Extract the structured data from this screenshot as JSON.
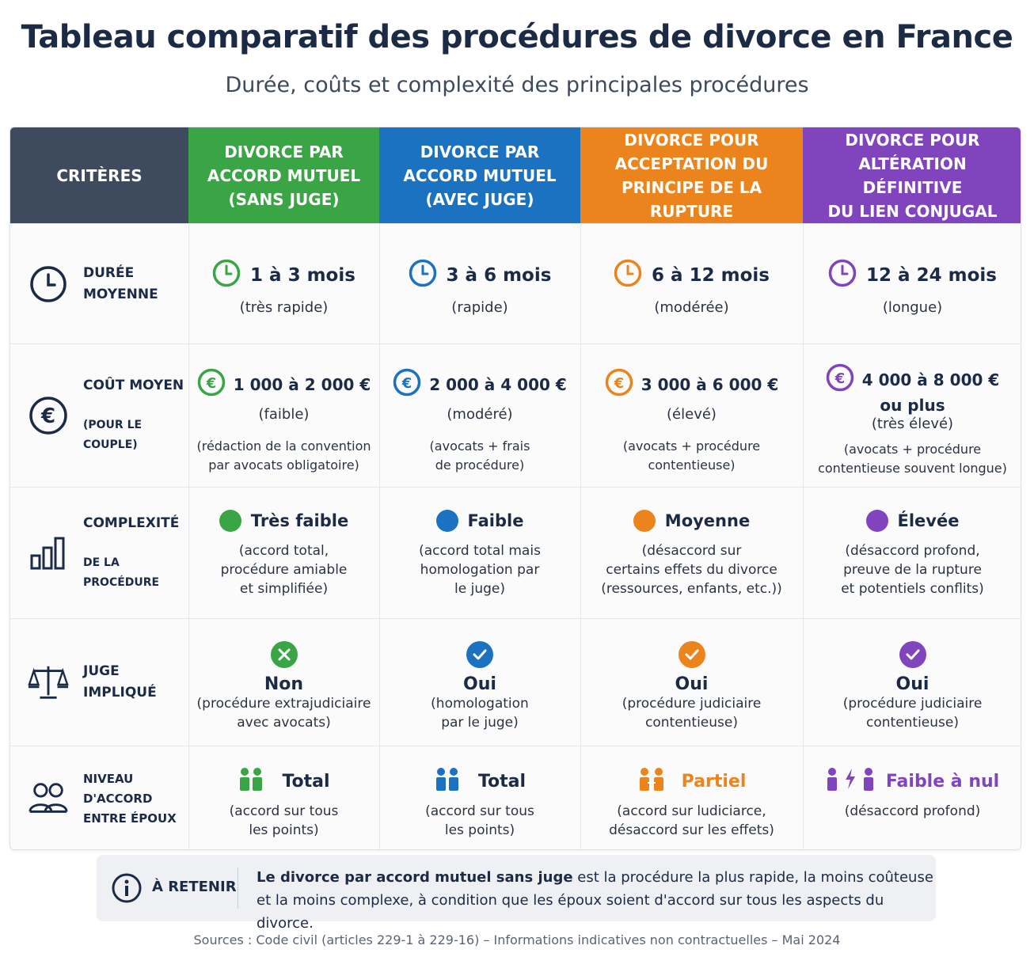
{
  "title": "Tableau comparatif des procédures de divorce en France",
  "subtitle": "Durée, coûts et complexité des principales procédures",
  "colors": {
    "criteria_header": "#3e4b5e",
    "green": "#3aa545",
    "blue": "#1a72c0",
    "orange": "#eb841c",
    "purple": "#8044bc"
  },
  "header": {
    "criteria": "CRITÈRES",
    "columns": [
      "DIVORCE PAR\nACCORD MUTUEL\n(SANS JUGE)",
      "DIVORCE PAR\nACCORD MUTUEL\n(AVEC JUGE)",
      "DIVORCE POUR\nACCEPTATION DU\nPRINCIPE DE LA RUPTURE",
      "DIVORCE POUR\nALTÉRATION DÉFINITIVE\nDU LIEN CONJUGAL"
    ]
  },
  "rows": {
    "duree": {
      "label": "DURÉE\nMOYENNE",
      "icon": "clock-icon",
      "cells": [
        {
          "value": "1 à 3 mois",
          "sub": "(très rapide)"
        },
        {
          "value": "3 à 6 mois",
          "sub": "(rapide)"
        },
        {
          "value": "6 à 12 mois",
          "sub": "(modérée)"
        },
        {
          "value": "12 à 24 mois",
          "sub": "(longue)"
        }
      ]
    },
    "cout": {
      "label": "COÛT MOYEN",
      "label_sub": "(POUR LE COUPLE)",
      "icon": "euro-icon",
      "cells": [
        {
          "value": "1 000 à 2 000 €",
          "value2": "",
          "sub": "(faible)",
          "note": "(rédaction de la convention\npar avocats obligatoire)"
        },
        {
          "value": "2 000 à 4 000 €",
          "value2": "",
          "sub": "(modéré)",
          "note": "(avocats + frais\nde procédure)"
        },
        {
          "value": "3 000 à 6 000 €",
          "value2": "",
          "sub": "(élevé)",
          "note": "(avocats + procédure\ncontentieuse)"
        },
        {
          "value": "4 000 à 8 000 €",
          "value2": "ou plus",
          "sub": "(très élevé)",
          "note": "(avocats + procédure\ncontentieuse souvent longue)"
        }
      ]
    },
    "complexite": {
      "label": "COMPLEXITÉ",
      "label_sub": "DE LA PROCÉDURE",
      "icon": "bar-chart-icon",
      "cells": [
        {
          "value": "Très faible",
          "desc": "(accord total,\nprocédure amiable\net simplifiée)"
        },
        {
          "value": "Faible",
          "desc": "(accord total mais\nhomologation par\nle juge)"
        },
        {
          "value": "Moyenne",
          "desc": "(désaccord sur\ncertains effets du divorce\n(ressources, enfants, etc.))"
        },
        {
          "value": "Élevée",
          "desc": "(désaccord profond,\npreuve de la rupture\net potentiels conflits)"
        }
      ]
    },
    "juge": {
      "label": "JUGE\nIMPLIQUÉ",
      "icon": "scales-icon",
      "cells": [
        {
          "value": "Non",
          "desc": "(procédure extrajudiciaire\navec avocats)",
          "mark": "cross"
        },
        {
          "value": "Oui",
          "desc": "(homologation\npar le juge)",
          "mark": "check"
        },
        {
          "value": "Oui",
          "desc": "(procédure judiciaire\ncontentieuse)",
          "mark": "check"
        },
        {
          "value": "Oui",
          "desc": "(procédure judiciaire\ncontentieuse)",
          "mark": "check"
        }
      ]
    },
    "accord": {
      "label": "NIVEAU D'ACCORD\nENTRE ÉPOUX",
      "icon": "people-icon",
      "cells": [
        {
          "value": "Total",
          "desc": "(accord sur tous\nles points)"
        },
        {
          "value": "Total",
          "desc": "(accord sur tous\nles points)"
        },
        {
          "value": "Partiel",
          "desc": "(accord sur ludiciarce,\ndésaccord sur les effets)"
        },
        {
          "value": "Faible à nul",
          "desc": "(désaccord profond)"
        }
      ]
    }
  },
  "retain": {
    "label": "À RETENIR",
    "text_bold": "Le divorce par accord mutuel sans juge",
    "text_rest1": " est la procédure la plus rapide, la moins coûteuse",
    "text_line2": "et la moins complexe, à condition que les époux soient d'accord sur tous les aspects du divorce."
  },
  "sources": "Sources : Code civil (articles 229-1 à 229-16) – Informations indicatives non contractuelles – Mai 2024"
}
